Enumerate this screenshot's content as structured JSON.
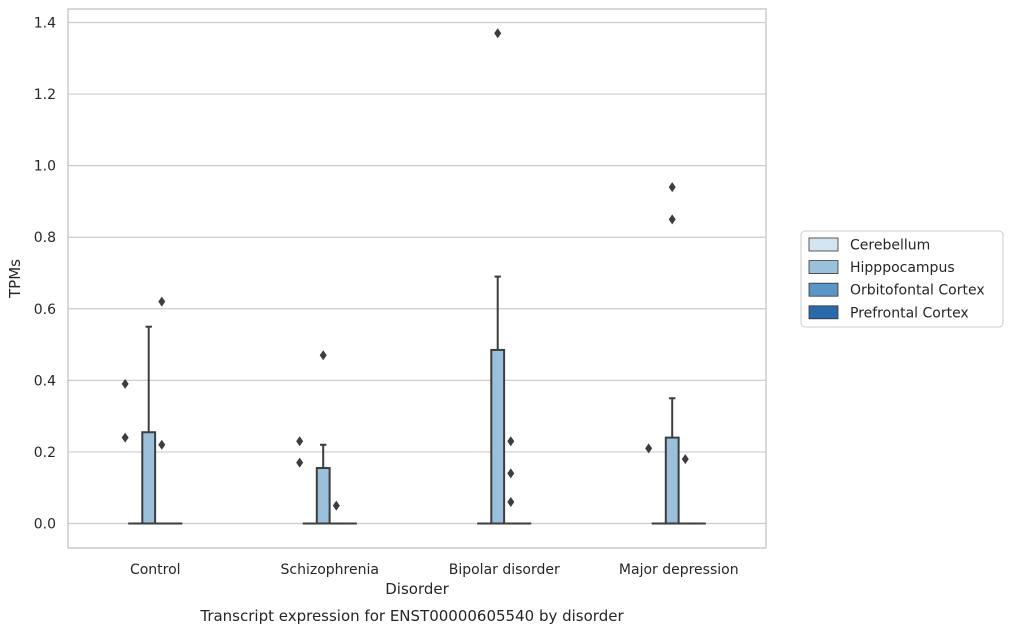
{
  "chart_data": {
    "type": "box",
    "xlabel": "Disorder",
    "ylabel": "TPMs",
    "caption": "Transcript expression for ENST00000605540 by disorder",
    "ylim": [
      -0.065,
      1.44
    ],
    "yticks": [
      "0.0",
      "0.2",
      "0.4",
      "0.6",
      "0.8",
      "1.0",
      "1.2",
      "1.4"
    ],
    "grid": "horizontal",
    "legend_position": "right",
    "categories": [
      "Control",
      "Schizophrenia",
      "Bipolar disorder",
      "Major depression"
    ],
    "series": [
      {
        "name": "Cerebellum",
        "color": "#d3e4f3",
        "boxes": [
          {
            "q1": 0,
            "median": 0,
            "q3": 0,
            "whisker_low": 0,
            "whisker_high": 0,
            "outliers": []
          },
          {
            "q1": 0,
            "median": 0,
            "q3": 0,
            "whisker_low": 0,
            "whisker_high": 0,
            "outliers": []
          },
          {
            "q1": 0,
            "median": 0,
            "q3": 0,
            "whisker_low": 0,
            "whisker_high": 0,
            "outliers": []
          },
          {
            "q1": 0,
            "median": 0,
            "q3": 0,
            "whisker_low": 0,
            "whisker_high": 0,
            "outliers": []
          }
        ]
      },
      {
        "name": "Hipppocampus",
        "color": "#9ac0dc",
        "boxes": [
          {
            "q1": 0,
            "median": 0,
            "q3": 0.255,
            "whisker_low": 0,
            "whisker_high": 0.55,
            "outliers": []
          },
          {
            "q1": 0,
            "median": 0,
            "q3": 0.155,
            "whisker_low": 0,
            "whisker_high": 0.22,
            "outliers": [
              0.47
            ]
          },
          {
            "q1": 0,
            "median": 0,
            "q3": 0.485,
            "whisker_low": 0,
            "whisker_high": 0.69,
            "outliers": [
              1.37
            ]
          },
          {
            "q1": 0,
            "median": 0,
            "q3": 0.24,
            "whisker_low": 0,
            "whisker_high": 0.35,
            "outliers": [
              0.85,
              0.94
            ]
          }
        ]
      },
      {
        "name": "Orbitofontal Cortex",
        "color": "#5a96c5",
        "boxes": [
          {
            "q1": 0,
            "median": 0,
            "q3": 0,
            "whisker_low": 0,
            "whisker_high": 0,
            "outliers": [
              0.22,
              0.62
            ]
          },
          {
            "q1": 0,
            "median": 0,
            "q3": 0,
            "whisker_low": 0,
            "whisker_high": 0,
            "outliers": [
              0.05
            ]
          },
          {
            "q1": 0,
            "median": 0,
            "q3": 0,
            "whisker_low": 0,
            "whisker_high": 0,
            "outliers": [
              0.06,
              0.14,
              0.23
            ]
          },
          {
            "q1": 0,
            "median": 0,
            "q3": 0,
            "whisker_low": 0,
            "whisker_high": 0,
            "outliers": [
              0.18
            ]
          }
        ]
      },
      {
        "name": "Prefrontal Cortex",
        "color": "#2b6aaa",
        "boxes": [
          {
            "q1": 0,
            "median": 0,
            "q3": 0,
            "whisker_low": 0,
            "whisker_high": 0,
            "outliers": []
          },
          {
            "q1": 0,
            "median": 0,
            "q3": 0,
            "whisker_low": 0,
            "whisker_high": 0,
            "outliers": []
          },
          {
            "q1": 0,
            "median": 0,
            "q3": 0,
            "whisker_low": 0,
            "whisker_high": 0,
            "outliers": []
          },
          {
            "q1": 0,
            "median": 0,
            "q3": 0,
            "whisker_low": 0,
            "whisker_high": 0,
            "outliers": []
          }
        ]
      }
    ],
    "extra_outliers": [
      {
        "category_index": 0,
        "side": "left",
        "values": [
          0.24,
          0.39
        ]
      },
      {
        "category_index": 1,
        "side": "left",
        "values": [
          0.17,
          0.23
        ]
      },
      {
        "category_index": 3,
        "side": "left",
        "values": [
          0.21
        ]
      }
    ]
  }
}
